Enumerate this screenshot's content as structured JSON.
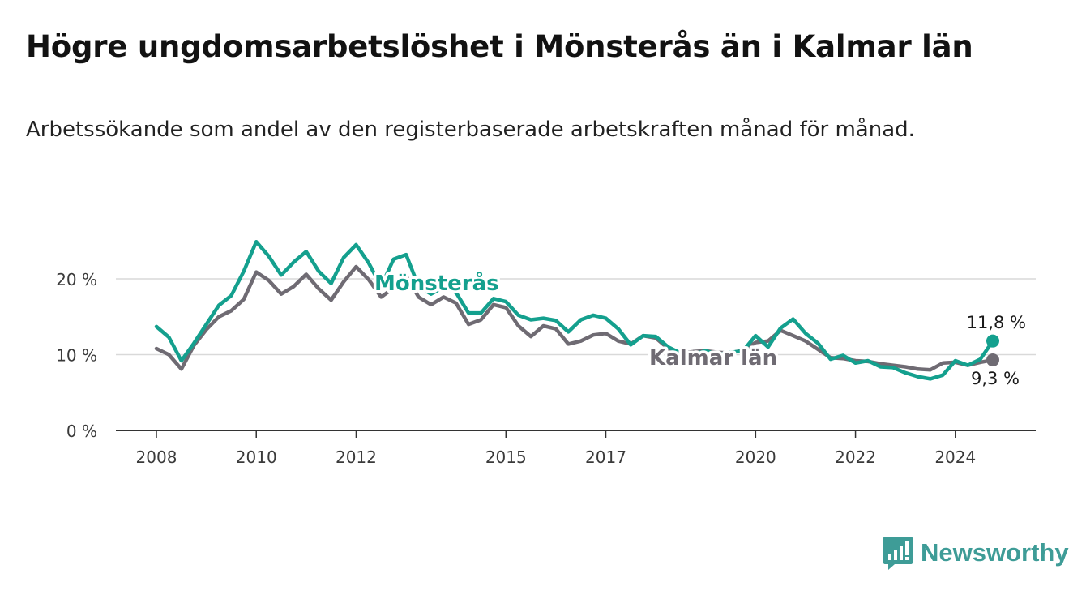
{
  "title": "Högre ungdomsarbetslöshet i Mönsterås än i Kalmar län",
  "subtitle": "Arbetssökande som andel av den registerbaserade arbetskraften månad för månad.",
  "brand": {
    "name": "Newsworthy",
    "icon": "newsworthy-logo-icon",
    "color": "#3e9c97"
  },
  "chart_data": {
    "type": "line",
    "title": "Högre ungdomsarbetslöshet i Mönsterås än i Kalmar län",
    "subtitle": "Arbetssökande som andel av den registerbaserade arbetskraften månad för månad.",
    "xlabel": "",
    "ylabel": "",
    "x_ticks": [
      "2008",
      "2010",
      "2012",
      "2015",
      "2017",
      "2020",
      "2022",
      "2024"
    ],
    "y_ticks": [
      "0 %",
      "10 %",
      "20 %"
    ],
    "y_tick_values": [
      0,
      10,
      20
    ],
    "xlim": [
      "2008-01",
      "2024-10"
    ],
    "ylim": [
      0,
      25
    ],
    "grid": "horizontal",
    "legend": "inline labels",
    "end_labels": [
      {
        "series": "Mönsterås",
        "text": "11,8 %"
      },
      {
        "series": "Kalmar län",
        "text": "9,3 %"
      }
    ],
    "series": [
      {
        "name": "Mönsterås",
        "color": "#14a08e",
        "points": [
          [
            "2008-01",
            13.7
          ],
          [
            "2008-04",
            12.3
          ],
          [
            "2008-07",
            9.2
          ],
          [
            "2008-10",
            11.5
          ],
          [
            "2009-01",
            14.0
          ],
          [
            "2009-04",
            16.5
          ],
          [
            "2009-07",
            17.8
          ],
          [
            "2009-10",
            21.0
          ],
          [
            "2010-01",
            24.9
          ],
          [
            "2010-04",
            23.0
          ],
          [
            "2010-07",
            20.5
          ],
          [
            "2010-10",
            22.2
          ],
          [
            "2011-01",
            23.6
          ],
          [
            "2011-04",
            21.0
          ],
          [
            "2011-07",
            19.4
          ],
          [
            "2011-10",
            22.8
          ],
          [
            "2012-01",
            24.5
          ],
          [
            "2012-04",
            22.1
          ],
          [
            "2012-07",
            19.0
          ],
          [
            "2012-10",
            22.6
          ],
          [
            "2013-01",
            23.2
          ],
          [
            "2013-04",
            19.0
          ],
          [
            "2013-07",
            18.0
          ],
          [
            "2013-10",
            18.9
          ],
          [
            "2014-01",
            18.2
          ],
          [
            "2014-04",
            15.5
          ],
          [
            "2014-07",
            15.5
          ],
          [
            "2014-10",
            17.4
          ],
          [
            "2015-01",
            17.0
          ],
          [
            "2015-04",
            15.2
          ],
          [
            "2015-07",
            14.6
          ],
          [
            "2015-10",
            14.8
          ],
          [
            "2016-01",
            14.5
          ],
          [
            "2016-04",
            13.0
          ],
          [
            "2016-07",
            14.6
          ],
          [
            "2016-10",
            15.2
          ],
          [
            "2017-01",
            14.8
          ],
          [
            "2017-04",
            13.4
          ],
          [
            "2017-07",
            11.3
          ],
          [
            "2017-10",
            12.5
          ],
          [
            "2018-01",
            12.4
          ],
          [
            "2018-04",
            11.0
          ],
          [
            "2018-07",
            10.2
          ],
          [
            "2018-10",
            10.0
          ],
          [
            "2019-01",
            10.5
          ],
          [
            "2019-04",
            10.0
          ],
          [
            "2019-07",
            10.3
          ],
          [
            "2019-10",
            10.5
          ],
          [
            "2020-01",
            12.5
          ],
          [
            "2020-04",
            11.0
          ],
          [
            "2020-07",
            13.5
          ],
          [
            "2020-10",
            14.7
          ],
          [
            "2021-01",
            12.8
          ],
          [
            "2021-04",
            11.5
          ],
          [
            "2021-07",
            9.4
          ],
          [
            "2021-10",
            9.9
          ],
          [
            "2022-01",
            8.9
          ],
          [
            "2022-04",
            9.2
          ],
          [
            "2022-07",
            8.4
          ],
          [
            "2022-10",
            8.3
          ],
          [
            "2023-01",
            7.6
          ],
          [
            "2023-04",
            7.1
          ],
          [
            "2023-07",
            6.8
          ],
          [
            "2023-10",
            7.3
          ],
          [
            "2024-01",
            9.2
          ],
          [
            "2024-04",
            8.6
          ],
          [
            "2024-07",
            9.4
          ],
          [
            "2024-10",
            11.8
          ]
        ]
      },
      {
        "name": "Kalmar län",
        "color": "#6f6b73",
        "points": [
          [
            "2008-01",
            10.8
          ],
          [
            "2008-04",
            10.0
          ],
          [
            "2008-07",
            8.1
          ],
          [
            "2008-10",
            11.2
          ],
          [
            "2009-01",
            13.3
          ],
          [
            "2009-04",
            15.0
          ],
          [
            "2009-07",
            15.8
          ],
          [
            "2009-10",
            17.3
          ],
          [
            "2010-01",
            20.9
          ],
          [
            "2010-04",
            19.8
          ],
          [
            "2010-07",
            18.0
          ],
          [
            "2010-10",
            19.0
          ],
          [
            "2011-01",
            20.6
          ],
          [
            "2011-04",
            18.7
          ],
          [
            "2011-07",
            17.2
          ],
          [
            "2011-10",
            19.6
          ],
          [
            "2012-01",
            21.6
          ],
          [
            "2012-04",
            19.9
          ],
          [
            "2012-07",
            17.6
          ],
          [
            "2012-10",
            18.8
          ],
          [
            "2013-01",
            20.4
          ],
          [
            "2013-04",
            17.6
          ],
          [
            "2013-07",
            16.6
          ],
          [
            "2013-10",
            17.6
          ],
          [
            "2014-01",
            16.8
          ],
          [
            "2014-04",
            14.0
          ],
          [
            "2014-07",
            14.6
          ],
          [
            "2014-10",
            16.6
          ],
          [
            "2015-01",
            16.2
          ],
          [
            "2015-04",
            13.8
          ],
          [
            "2015-07",
            12.4
          ],
          [
            "2015-10",
            13.8
          ],
          [
            "2016-01",
            13.4
          ],
          [
            "2016-04",
            11.4
          ],
          [
            "2016-07",
            11.8
          ],
          [
            "2016-10",
            12.6
          ],
          [
            "2017-01",
            12.8
          ],
          [
            "2017-04",
            11.8
          ],
          [
            "2017-07",
            11.4
          ],
          [
            "2017-10",
            12.5
          ],
          [
            "2018-01",
            12.2
          ],
          [
            "2018-04",
            10.8
          ],
          [
            "2018-07",
            10.2
          ],
          [
            "2018-10",
            10.4
          ],
          [
            "2019-01",
            10.5
          ],
          [
            "2019-04",
            10.3
          ],
          [
            "2019-07",
            10.2
          ],
          [
            "2019-10",
            10.6
          ],
          [
            "2020-01",
            11.6
          ],
          [
            "2020-04",
            11.8
          ],
          [
            "2020-07",
            13.2
          ],
          [
            "2020-10",
            12.5
          ],
          [
            "2021-01",
            11.8
          ],
          [
            "2021-04",
            10.7
          ],
          [
            "2021-07",
            9.6
          ],
          [
            "2021-10",
            9.5
          ],
          [
            "2022-01",
            9.2
          ],
          [
            "2022-04",
            9.1
          ],
          [
            "2022-07",
            8.8
          ],
          [
            "2022-10",
            8.6
          ],
          [
            "2023-01",
            8.4
          ],
          [
            "2023-04",
            8.1
          ],
          [
            "2023-07",
            8.0
          ],
          [
            "2023-10",
            8.9
          ],
          [
            "2024-01",
            9.0
          ],
          [
            "2024-04",
            8.6
          ],
          [
            "2024-07",
            9.0
          ],
          [
            "2024-10",
            9.3
          ]
        ]
      }
    ]
  }
}
